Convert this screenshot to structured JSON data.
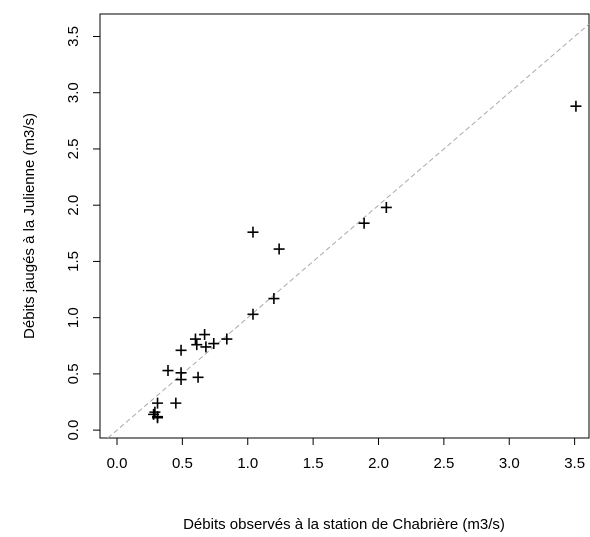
{
  "chart_data": {
    "type": "scatter",
    "x_label": "Débits observés à la station de Chabrière (m3/s)",
    "y_label": "Débits jaugés à la Julienne (m3/s)",
    "x": [
      3.51,
      2.06,
      1.89,
      1.24,
      1.04,
      1.2,
      1.04,
      0.84,
      0.74,
      0.67,
      0.68,
      0.6,
      0.61,
      0.49,
      0.49,
      0.49,
      0.62,
      0.39,
      0.45,
      0.31,
      0.29,
      0.28,
      0.31,
      0.31
    ],
    "values": [
      2.88,
      1.98,
      1.84,
      1.61,
      1.76,
      1.17,
      1.03,
      0.81,
      0.77,
      0.85,
      0.74,
      0.81,
      0.76,
      0.71,
      0.51,
      0.45,
      0.47,
      0.53,
      0.24,
      0.24,
      0.16,
      0.14,
      0.12,
      0.11
    ],
    "color": "#000000",
    "identity_line": true,
    "xlim": [
      -0.13,
      3.61
    ],
    "ylim": [
      -0.07,
      3.7
    ],
    "xticks": [
      {
        "value": 0,
        "label": "0.0"
      },
      0.5,
      {
        "value": 1,
        "label": "1.0"
      },
      1.5,
      {
        "value": 2,
        "label": "2.0"
      },
      2.5,
      {
        "value": 3,
        "label": "3.0"
      },
      3.5
    ],
    "yticks": [
      {
        "value": 0,
        "label": "0.0"
      },
      0.5,
      {
        "value": 1,
        "label": "1.0"
      },
      1.5,
      {
        "value": 2,
        "label": "2.0"
      },
      2.5,
      {
        "value": 3,
        "label": "3.0"
      },
      3.5
    ]
  }
}
